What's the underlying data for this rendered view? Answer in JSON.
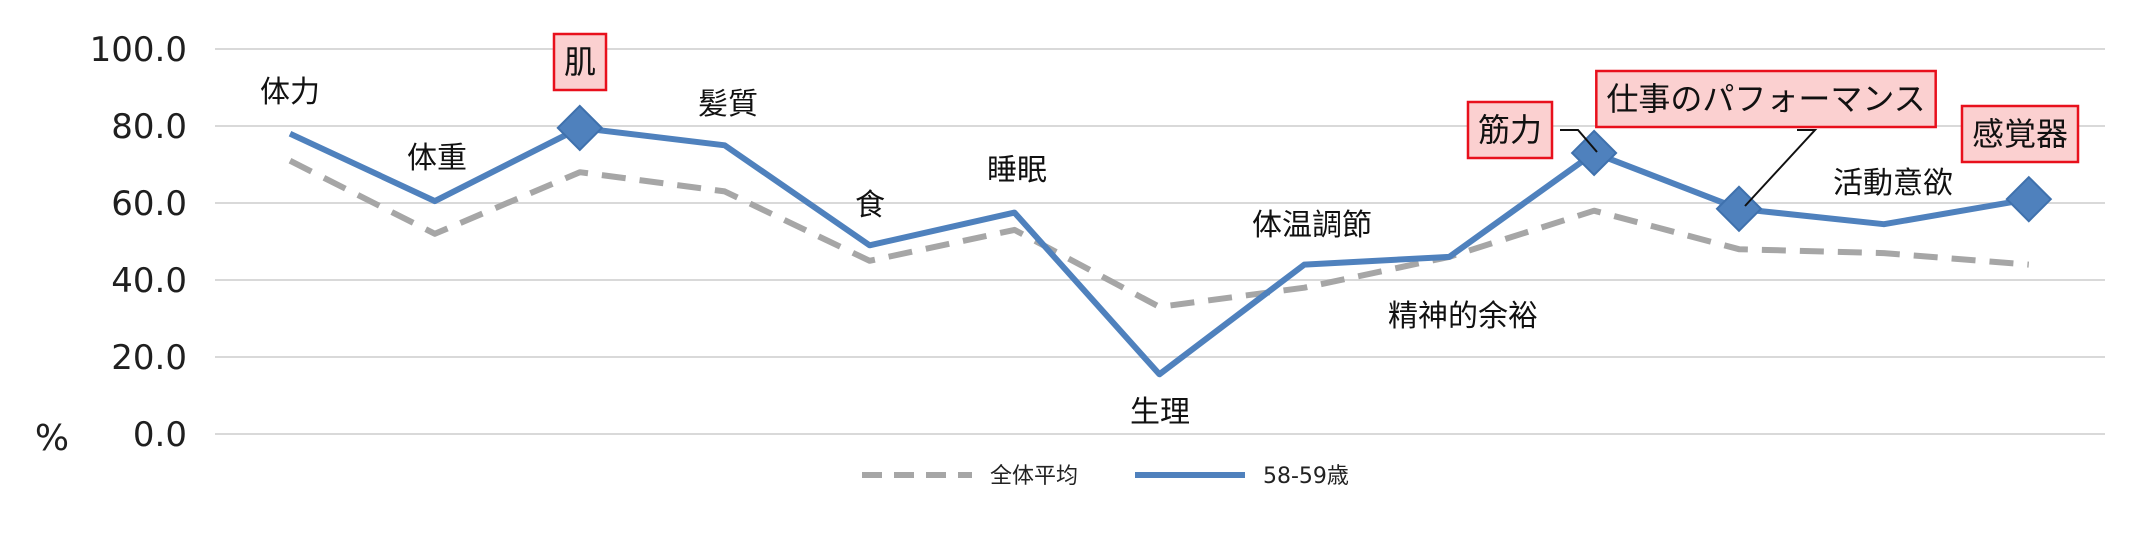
{
  "chart_data": {
    "type": "line",
    "unit_label": "%",
    "ylim": [
      0,
      100
    ],
    "yticks": [
      "100.0",
      "80.0",
      "60.0",
      "40.0",
      "20.0",
      "0.0"
    ],
    "grid": true,
    "legend_position": "bottom",
    "categories": [
      "体力",
      "体重",
      "肌",
      "髪質",
      "食",
      "睡眠",
      "生理",
      "体温調節",
      "精神的余裕",
      "筋力",
      "仕事のパフォーマンス",
      "活動意欲",
      "感覚器"
    ],
    "highlighted": [
      "肌",
      "筋力",
      "仕事のパフォーマンス",
      "感覚器"
    ],
    "series": [
      {
        "name": "全体平均",
        "values": [
          71,
          52,
          68,
          63,
          45,
          53,
          33,
          38,
          46,
          58,
          48,
          47,
          44
        ],
        "color": "#a6a6a6",
        "style": "dashed"
      },
      {
        "name": "58-59歳",
        "values": [
          78,
          60.5,
          79.5,
          75,
          49,
          57.5,
          15.5,
          44,
          46,
          73,
          58.5,
          54.5,
          61
        ],
        "color": "#4f81bd",
        "style": "solid"
      }
    ],
    "colors": {
      "callout_fill": "#fbd0d0",
      "callout_border": "#e8101c",
      "marker": "#4f81bd",
      "grid": "#d9d9d9"
    }
  }
}
